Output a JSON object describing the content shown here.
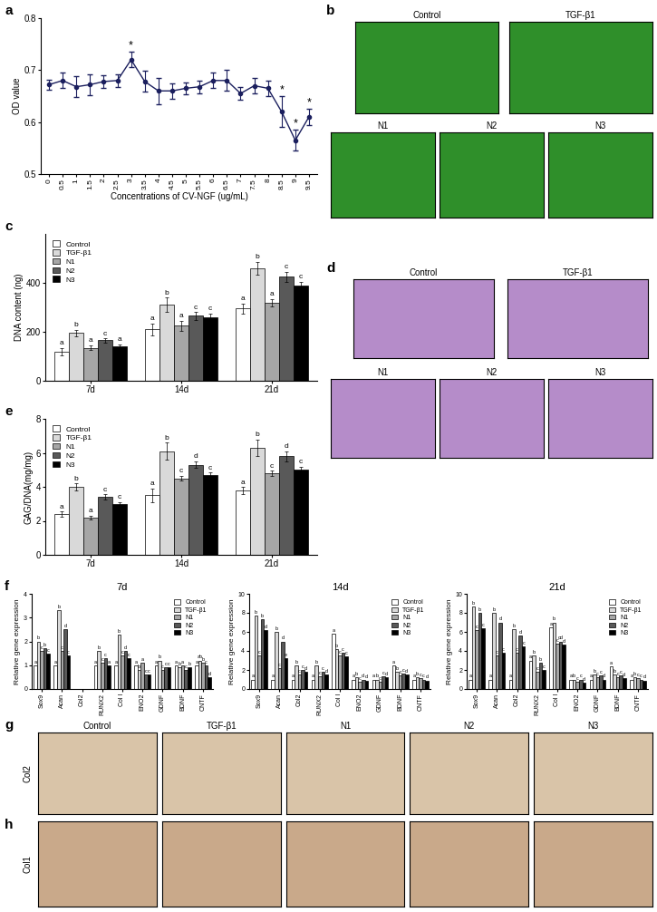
{
  "chart_data": [
    {
      "panel": "a",
      "type": "line",
      "x": [
        0,
        0.5,
        1,
        1.5,
        2,
        2.5,
        3,
        3.5,
        4,
        4.5,
        5,
        5.5,
        6,
        6.5,
        7,
        7.5,
        8,
        8.5,
        9,
        9.5
      ],
      "values": [
        0.672,
        0.68,
        0.668,
        0.672,
        0.678,
        0.68,
        0.72,
        0.678,
        0.66,
        0.66,
        0.665,
        0.668,
        0.68,
        0.68,
        0.655,
        0.67,
        0.665,
        0.62,
        0.565,
        0.61
      ],
      "errors": [
        0.01,
        0.015,
        0.02,
        0.02,
        0.012,
        0.012,
        0.015,
        0.02,
        0.025,
        0.015,
        0.012,
        0.012,
        0.015,
        0.02,
        0.012,
        0.015,
        0.015,
        0.03,
        0.02,
        0.015
      ],
      "color": "#1b1f5e",
      "marker": "o",
      "xlabel": "Concentrations of CV-NGF (ug/mL)",
      "ylabel": "OD value",
      "xlim": [
        -0.3,
        9.8
      ],
      "xticks": [
        0,
        0.5,
        1,
        1.5,
        2,
        2.5,
        3,
        3.5,
        4,
        4.5,
        5,
        5.5,
        6,
        6.5,
        7,
        7.5,
        8,
        8.5,
        9,
        9.5
      ],
      "ylim": [
        0.5,
        0.8
      ],
      "yticks": [
        0.5,
        0.6,
        0.7,
        0.8
      ],
      "annotations": [
        {
          "x": 3,
          "text": "*"
        },
        {
          "x": 8.5,
          "text": "*"
        },
        {
          "x": 9,
          "text": "*"
        },
        {
          "x": 9.5,
          "text": "*"
        }
      ]
    },
    {
      "panel": "c",
      "type": "bar",
      "categories": [
        "7d",
        "14d",
        "21d"
      ],
      "ylabel": "DNA content (ng)",
      "ylim": [
        0,
        600
      ],
      "yticks": [
        0,
        200,
        400
      ],
      "legend": "upper left",
      "series": [
        {
          "name": "Control",
          "color": "#ffffff",
          "values": [
            120,
            210,
            295
          ],
          "errors": [
            15,
            25,
            20
          ],
          "letters": [
            "a",
            "a",
            "a"
          ]
        },
        {
          "name": "TGF-β1",
          "color": "#d9d9d9",
          "values": [
            195,
            310,
            460
          ],
          "errors": [
            12,
            30,
            25
          ],
          "letters": [
            "b",
            "b",
            "b"
          ]
        },
        {
          "name": "N1",
          "color": "#a6a6a6",
          "values": [
            135,
            225,
            320
          ],
          "errors": [
            10,
            20,
            15
          ],
          "letters": [
            "a",
            "a",
            "a"
          ]
        },
        {
          "name": "N2",
          "color": "#595959",
          "values": [
            165,
            265,
            425
          ],
          "errors": [
            8,
            15,
            20
          ],
          "letters": [
            "c",
            "c",
            "c"
          ]
        },
        {
          "name": "N3",
          "color": "#000000",
          "values": [
            140,
            260,
            390
          ],
          "errors": [
            8,
            15,
            15
          ],
          "letters": [
            "a",
            "c",
            "c"
          ]
        }
      ]
    },
    {
      "panel": "e",
      "type": "bar",
      "categories": [
        "7d",
        "14d",
        "21d"
      ],
      "ylabel": "GAG/DNA(mg/mg)",
      "ylim": [
        0,
        8
      ],
      "yticks": [
        0,
        2,
        4,
        6,
        8
      ],
      "legend": "upper left",
      "series": [
        {
          "name": "Control",
          "color": "#ffffff",
          "values": [
            2.4,
            3.5,
            3.8
          ],
          "errors": [
            0.15,
            0.4,
            0.2
          ],
          "letters": [
            "a",
            "a",
            "a"
          ]
        },
        {
          "name": "TGF-β1",
          "color": "#d9d9d9",
          "values": [
            4.0,
            6.1,
            6.3
          ],
          "errors": [
            0.2,
            0.5,
            0.5
          ],
          "letters": [
            "b",
            "b",
            "b"
          ]
        },
        {
          "name": "N1",
          "color": "#a6a6a6",
          "values": [
            2.2,
            4.5,
            4.8
          ],
          "errors": [
            0.1,
            0.15,
            0.15
          ],
          "letters": [
            "a",
            "c",
            "c"
          ]
        },
        {
          "name": "N2",
          "color": "#595959",
          "values": [
            3.4,
            5.3,
            5.8
          ],
          "errors": [
            0.15,
            0.2,
            0.3
          ],
          "letters": [
            "c",
            "d",
            "d"
          ]
        },
        {
          "name": "N3",
          "color": "#000000",
          "values": [
            3.0,
            4.7,
            5.0
          ],
          "errors": [
            0.1,
            0.15,
            0.2
          ],
          "letters": [
            "c",
            "c",
            "c"
          ]
        }
      ]
    },
    {
      "panel": "f",
      "type": "bar",
      "title": "7d",
      "categories": [
        "Sox9",
        "Acan",
        "Col2",
        "RUNX2",
        "Col I",
        "ENO2",
        "GDNF",
        "BDNF",
        "CNTF"
      ],
      "ylabel": "Relative gene expression",
      "ylim": [
        0,
        4
      ],
      "yticks": [
        0,
        1,
        2,
        3,
        4
      ],
      "legend": "upper right",
      "series": [
        {
          "name": "Control",
          "color": "#ffffff",
          "values": [
            1,
            1,
            0,
            1,
            1,
            1,
            1,
            1,
            1
          ],
          "letters": [
            "a",
            "a",
            null,
            "a",
            "a",
            "a",
            "a",
            "a",
            "a"
          ]
        },
        {
          "name": "TGF-β1",
          "color": "#d9d9d9",
          "values": [
            2.0,
            3.3,
            0,
            1.6,
            2.3,
            0.8,
            1.2,
            0.9,
            1.2
          ],
          "letters": [
            "b",
            "b",
            null,
            "b",
            "b",
            "b",
            "b",
            "b",
            "ab"
          ]
        },
        {
          "name": "N1",
          "color": "#a6a6a6",
          "values": [
            1.6,
            1.6,
            0,
            1.1,
            1.4,
            1.1,
            0.8,
            1.0,
            1.1
          ],
          "letters": [
            "c",
            "c",
            null,
            "c",
            "c",
            "a",
            "c",
            "a",
            "b"
          ]
        },
        {
          "name": "N2",
          "color": "#595959",
          "values": [
            1.7,
            2.5,
            0,
            1.3,
            1.6,
            0.6,
            0.9,
            0.8,
            1.0
          ],
          "letters": [
            "b",
            "d",
            null,
            "c",
            "d",
            "c",
            "c",
            "c",
            "c"
          ]
        },
        {
          "name": "N3",
          "color": "#000000",
          "values": [
            1.5,
            1.4,
            0,
            1.0,
            1.3,
            0.6,
            0.9,
            0.9,
            0.5
          ],
          "letters": [
            "c",
            "c",
            null,
            "a",
            "c",
            "c",
            "c",
            "b",
            "d"
          ]
        }
      ]
    },
    {
      "type": "bar",
      "title": "14d",
      "categories": [
        "Sox9",
        "Acan",
        "Col2",
        "RUNX2",
        "Col I",
        "ENO2",
        "GDNF",
        "BDNF",
        "CNTF"
      ],
      "ylabel": "Relative gene expression",
      "ylim": [
        0,
        10
      ],
      "yticks": [
        0,
        2,
        4,
        6,
        8,
        10
      ],
      "legend": "upper right",
      "series": [
        {
          "name": "Control",
          "color": "#ffffff",
          "values": [
            1,
            1,
            1,
            1,
            5.8,
            1,
            1,
            2.5,
            1
          ],
          "letters": [
            "a",
            "a",
            "a",
            "a",
            "a",
            "a",
            "a",
            "a",
            "a"
          ]
        },
        {
          "name": "TGF-β1",
          "color": "#d9d9d9",
          "values": [
            7.7,
            6.0,
            2.5,
            2.5,
            4.2,
            1.2,
            1.0,
            1.8,
            1.2
          ],
          "letters": [
            "b",
            "b",
            "b",
            "b",
            "b",
            "b",
            "b",
            "b",
            "b"
          ]
        },
        {
          "name": "N1",
          "color": "#a6a6a6",
          "values": [
            3.5,
            2.2,
            1.5,
            1.3,
            3.5,
            0.8,
            0.8,
            1.4,
            1.1
          ],
          "letters": [
            "c",
            "c",
            "c",
            "c",
            "c",
            "c",
            "c",
            "c",
            "c"
          ]
        },
        {
          "name": "N2",
          "color": "#595959",
          "values": [
            7.3,
            5.0,
            2.0,
            1.8,
            3.8,
            1.0,
            1.3,
            1.6,
            1.0
          ],
          "letters": [
            "b",
            "d",
            "c",
            "c",
            "c",
            "d",
            "c",
            "c",
            "c"
          ]
        },
        {
          "name": "N3",
          "color": "#000000",
          "values": [
            6.2,
            3.2,
            1.8,
            1.5,
            3.4,
            0.9,
            1.2,
            1.5,
            0.9
          ],
          "letters": [
            "d",
            "e",
            "d",
            "d",
            "c",
            "d",
            "d",
            "d",
            "d"
          ]
        }
      ]
    },
    {
      "type": "bar",
      "title": "21d",
      "categories": [
        "Sox9",
        "Acan",
        "Col2",
        "RUNX2",
        "Col I",
        "ENO2",
        "GDNF",
        "BDNF",
        "CNTF"
      ],
      "ylabel": "Relative gene expression",
      "ylim": [
        0,
        10
      ],
      "yticks": [
        0,
        2,
        4,
        6,
        8,
        10
      ],
      "legend": "upper right",
      "series": [
        {
          "name": "Control",
          "color": "#ffffff",
          "values": [
            1,
            1,
            1,
            3.0,
            6.5,
            1,
            1,
            2.4,
            1
          ],
          "letters": [
            "a",
            "a",
            "a",
            "a",
            "a",
            "a",
            "a",
            "a",
            "a"
          ]
        },
        {
          "name": "TGF-β1",
          "color": "#d9d9d9",
          "values": [
            8.7,
            8.0,
            6.3,
            3.5,
            7.0,
            1.0,
            1.5,
            1.5,
            1.2
          ],
          "letters": [
            "b",
            "b",
            "b",
            "b",
            "b",
            "b",
            "b",
            "b",
            "b"
          ]
        },
        {
          "name": "N1",
          "color": "#a6a6a6",
          "values": [
            6.2,
            3.5,
            3.8,
            1.8,
            4.8,
            0.8,
            1.2,
            1.2,
            1.1
          ],
          "letters": [
            "c",
            "c",
            "c",
            "c",
            "c",
            "c",
            "c",
            "c",
            "c"
          ]
        },
        {
          "name": "N2",
          "color": "#595959",
          "values": [
            8.0,
            7.0,
            5.6,
            2.8,
            5.0,
            1.0,
            1.4,
            1.4,
            1.0
          ],
          "letters": [
            "b",
            "d",
            "d",
            "b",
            "cd",
            "c",
            "c",
            "c",
            "c"
          ]
        },
        {
          "name": "N3",
          "color": "#000000",
          "values": [
            6.4,
            3.8,
            4.5,
            2.0,
            4.7,
            0.7,
            1.0,
            1.1,
            0.9
          ],
          "letters": [
            "c",
            "c",
            "c",
            "c",
            "d",
            "d",
            "d",
            "d",
            "d"
          ]
        }
      ]
    }
  ],
  "images": [
    {
      "panel": "b",
      "titles": [
        "Control",
        "TGF-β1",
        "N1",
        "N2",
        "N3"
      ]
    },
    {
      "panel": "d",
      "titles": [
        "Control",
        "TGF-β1",
        "N1",
        "N2",
        "N3"
      ]
    },
    {
      "panel": "g",
      "row_label": "Col2",
      "titles": [
        "Control",
        "TGF-β1",
        "N1",
        "N2",
        "N3"
      ]
    },
    {
      "panel": "h",
      "row_label": "Col1"
    }
  ]
}
